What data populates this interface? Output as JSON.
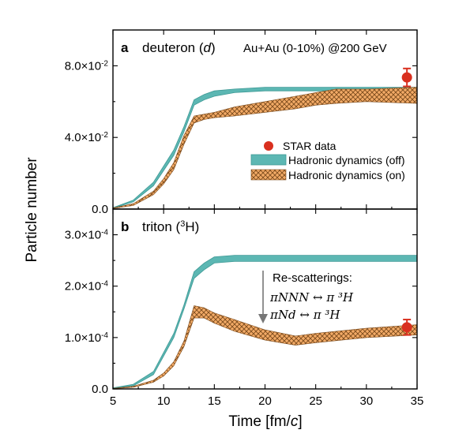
{
  "colors": {
    "teal_fill": "#5cb7b3",
    "teal_edge": "#3e9995",
    "orange_fill": "#f2aa66",
    "orange_hatch": "#7a4a1c",
    "star_red": "#d9301f"
  },
  "chart_data": [
    {
      "type": "area",
      "panel_letter": "a",
      "panel_title": "deuteron (",
      "panel_title_symbol": "d",
      "panel_title_close": ")",
      "system_label": "Au+Au (0-10%) @200 GeV",
      "ylabel": "Particle number",
      "xlim": [
        5,
        35
      ],
      "ylim": [
        0,
        0.1
      ],
      "y_ticks": [
        {
          "value": 0,
          "label": "0.0"
        },
        {
          "value": 0.04,
          "label_base": "4.0×10",
          "label_exp": "-2"
        },
        {
          "value": 0.08,
          "label_base": "8.0×10",
          "label_exp": "-2"
        }
      ],
      "legend_position": "right",
      "legend": [
        {
          "key": "star",
          "label": "STAR data"
        },
        {
          "key": "off",
          "label": "Hadronic dynamics (off)"
        },
        {
          "key": "on",
          "label": "Hadronic dynamics (on)"
        }
      ],
      "series": [
        {
          "name": "Hadronic dynamics (off)",
          "x": [
            5,
            7,
            9,
            11,
            12,
            13,
            14,
            15,
            17,
            20,
            25,
            30,
            35
          ],
          "y_low": [
            0.0005,
            0.004,
            0.013,
            0.03,
            0.043,
            0.058,
            0.061,
            0.063,
            0.065,
            0.066,
            0.066,
            0.066,
            0.066
          ],
          "y_high": [
            0.0008,
            0.005,
            0.015,
            0.033,
            0.046,
            0.061,
            0.064,
            0.066,
            0.067,
            0.068,
            0.068,
            0.068,
            0.068
          ]
        },
        {
          "name": "Hadronic dynamics (on)",
          "x": [
            5,
            7,
            9,
            10,
            11,
            12,
            13,
            14,
            15,
            17,
            20,
            23,
            25,
            27,
            30,
            35
          ],
          "y_low": [
            0.0003,
            0.002,
            0.008,
            0.014,
            0.022,
            0.036,
            0.048,
            0.05,
            0.051,
            0.052,
            0.054,
            0.056,
            0.058,
            0.059,
            0.06,
            0.059
          ],
          "y_high": [
            0.0006,
            0.003,
            0.01,
            0.017,
            0.026,
            0.041,
            0.052,
            0.053,
            0.054,
            0.057,
            0.06,
            0.063,
            0.065,
            0.067,
            0.067,
            0.068
          ]
        }
      ],
      "data_points": [
        {
          "name": "STAR data",
          "x": 34,
          "y": 0.0735,
          "y_err": 0.005
        }
      ]
    },
    {
      "type": "area",
      "panel_letter": "b",
      "panel_title": "triton (",
      "panel_title_sup": "3",
      "panel_title_close": "H)",
      "xlabel": "Time [fm/",
      "xlabel_italic": "c",
      "xlabel_close": "]",
      "xlim": [
        5,
        35
      ],
      "ylim": [
        0,
        0.00035
      ],
      "x_ticks": [
        5,
        10,
        15,
        20,
        25,
        30,
        35
      ],
      "y_ticks": [
        {
          "value": 0,
          "label": "0.0"
        },
        {
          "value": 0.0001,
          "label_base": "1.0×10",
          "label_exp": "-4"
        },
        {
          "value": 0.0002,
          "label_base": "2.0×10",
          "label_exp": "-4"
        },
        {
          "value": 0.0003,
          "label_base": "3.0×10",
          "label_exp": "-4"
        }
      ],
      "annotation": {
        "title": "Re-scatterings:",
        "line1": "πNNN ↔ π ³H",
        "line2": "πNd ↔ π ³H"
      },
      "series": [
        {
          "name": "Hadronic dynamics (off)",
          "x": [
            5,
            7,
            9,
            11,
            12,
            13,
            14,
            15,
            17,
            20,
            25,
            30,
            35
          ],
          "y_low": [
            1e-06,
            6e-06,
            2.8e-05,
            0.0001,
            0.000155,
            0.000215,
            0.000232,
            0.000245,
            0.000248,
            0.000248,
            0.000248,
            0.000248,
            0.000248
          ],
          "y_high": [
            2e-06,
            9e-06,
            3.4e-05,
            0.000108,
            0.000163,
            0.000228,
            0.000245,
            0.000257,
            0.00026,
            0.00026,
            0.00026,
            0.00026,
            0.00026
          ]
        },
        {
          "name": "Hadronic dynamics (on)",
          "x": [
            5,
            7,
            9,
            10,
            11,
            12,
            13,
            14,
            15,
            17,
            20,
            23,
            25,
            30,
            35
          ],
          "y_low": [
            5e-07,
            3e-06,
            1.3e-05,
            2.5e-05,
            4.5e-05,
            8.2e-05,
            0.000138,
            0.000138,
            0.000128,
            0.000112,
            9.5e-05,
            8.5e-05,
            9e-05,
            0.0001,
            0.000105
          ],
          "y_high": [
            1e-06,
            5e-06,
            1.7e-05,
            3.1e-05,
            5.3e-05,
            9.3e-05,
            0.000162,
            0.000158,
            0.000148,
            0.000135,
            0.000115,
            0.000103,
            0.000108,
            0.000118,
            0.000125
          ]
        }
      ],
      "data_points": [
        {
          "name": "STAR data",
          "x": 34,
          "y": 0.00012,
          "y_err": 1.5e-05
        }
      ]
    }
  ]
}
